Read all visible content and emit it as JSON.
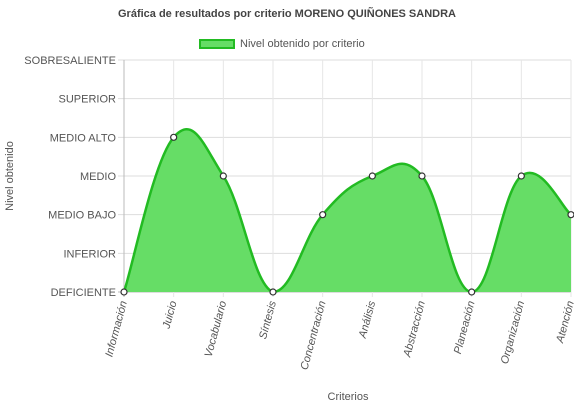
{
  "chart_data": {
    "type": "area",
    "title": "Gráfica de resultados por criterio MORENO QUIÑONES SANDRA",
    "xlabel": "Criterios",
    "ylabel": "Nivel obtenido",
    "levels": [
      "DEFICIENTE",
      "INFERIOR",
      "MEDIO BAJO",
      "MEDIO",
      "MEDIO ALTO",
      "SUPERIOR",
      "SOBRESALIENTE"
    ],
    "categories": [
      "Información",
      "Juicio",
      "Vocabulario",
      "Síntesis",
      "Concentración",
      "Análisis",
      "Abstracción",
      "Planeación",
      "Organización",
      "Atención"
    ],
    "series": [
      {
        "name": "Nivel obtenido por criterio",
        "values": [
          "DEFICIENTE",
          "MEDIO ALTO",
          "MEDIO",
          "DEFICIENTE",
          "MEDIO BAJO",
          "MEDIO",
          "MEDIO",
          "DEFICIENTE",
          "MEDIO",
          "MEDIO BAJO"
        ]
      }
    ],
    "fill_color": "#66dd66",
    "line_color": "#22bb22",
    "grid": true,
    "legend_position": "top"
  }
}
